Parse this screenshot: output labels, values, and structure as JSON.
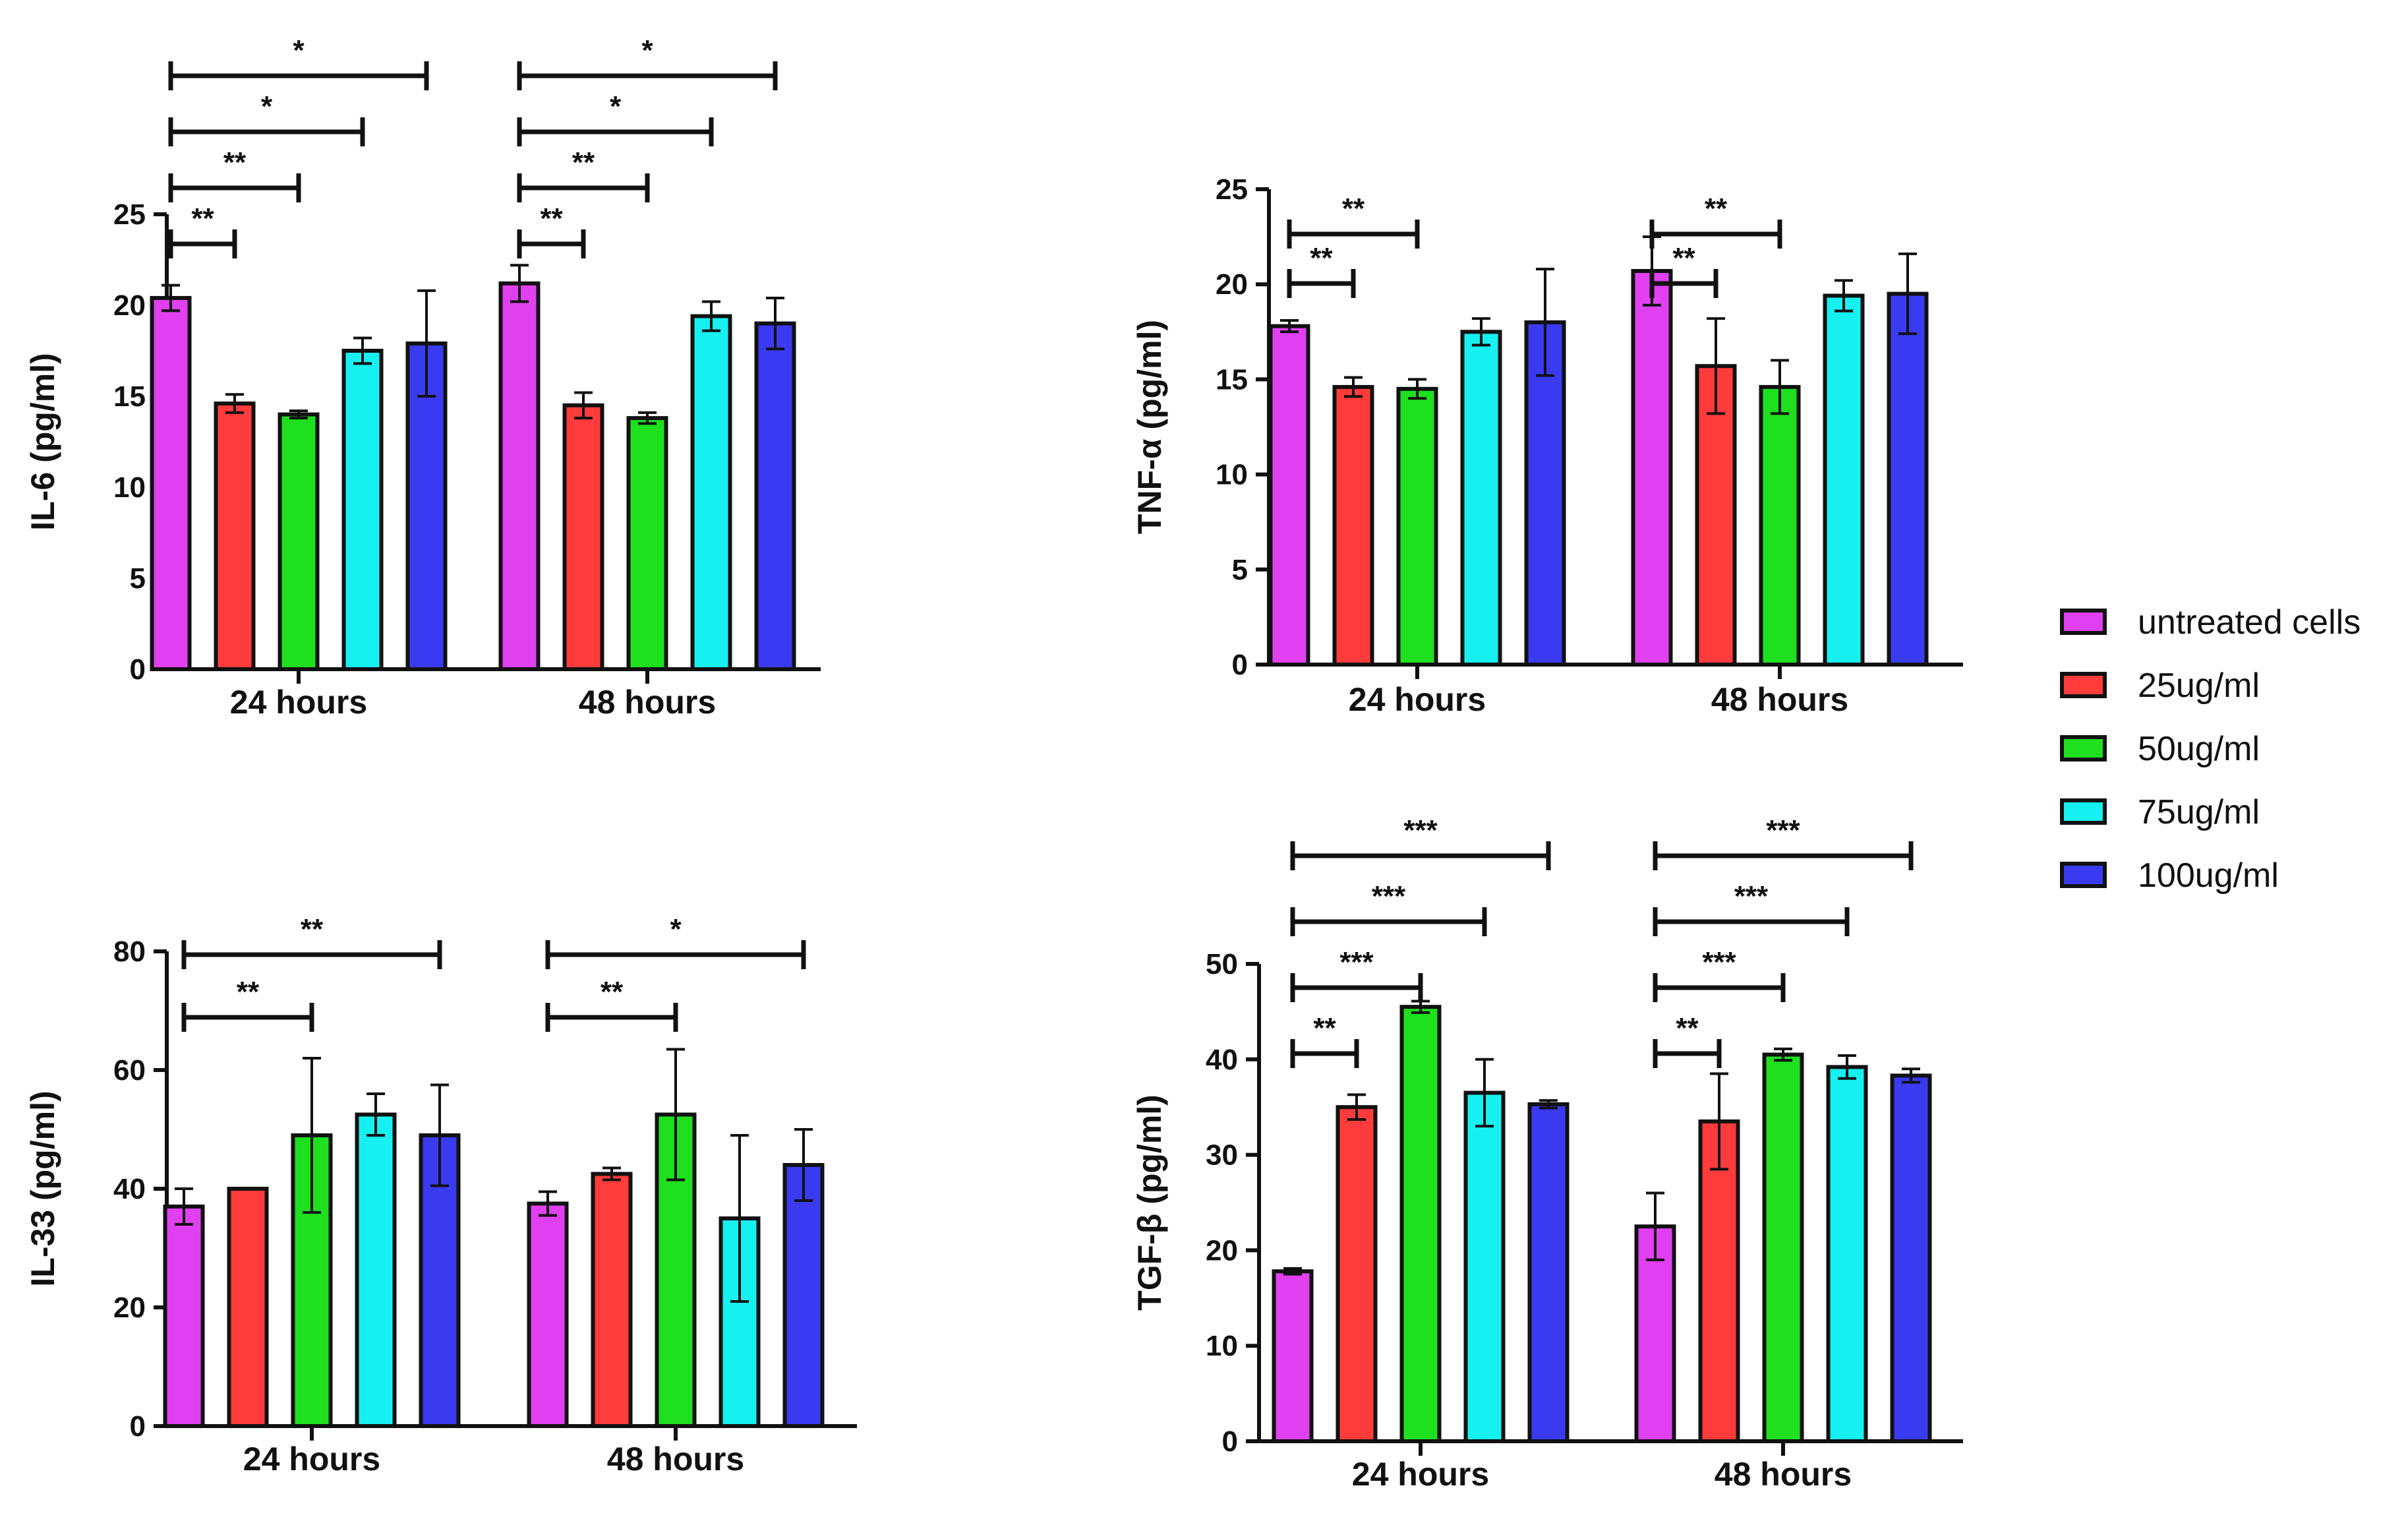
{
  "chart_data": [
    {
      "id": "il6",
      "type": "bar",
      "ylabel": "IL-6 (pg/ml)",
      "ylim": [
        0,
        25
      ],
      "yticks": [
        0,
        5,
        10,
        15,
        20,
        25
      ],
      "categories": [
        "24 hours",
        "48 hours"
      ],
      "series": [
        {
          "name": "untreated cells",
          "values": [
            20.4,
            21.2
          ],
          "errors": [
            0.7,
            1.0
          ]
        },
        {
          "name": "25ug/ml",
          "values": [
            14.6,
            14.5
          ],
          "errors": [
            0.5,
            0.7
          ]
        },
        {
          "name": "50ug/ml",
          "values": [
            14.0,
            13.8
          ],
          "errors": [
            0.2,
            0.3
          ]
        },
        {
          "name": "75ug/ml",
          "values": [
            17.5,
            19.4
          ],
          "errors": [
            0.7,
            0.8
          ]
        },
        {
          "name": "100ug/ml",
          "values": [
            17.9,
            19.0
          ],
          "errors": [
            2.9,
            1.4
          ]
        }
      ],
      "significance": [
        {
          "group": 0,
          "from": 0,
          "to": 1,
          "label": "**"
        },
        {
          "group": 0,
          "from": 0,
          "to": 2,
          "label": "**"
        },
        {
          "group": 0,
          "from": 0,
          "to": 3,
          "label": "*"
        },
        {
          "group": 0,
          "from": 0,
          "to": 4,
          "label": "*"
        },
        {
          "group": 1,
          "from": 0,
          "to": 1,
          "label": "**"
        },
        {
          "group": 1,
          "from": 0,
          "to": 2,
          "label": "**"
        },
        {
          "group": 1,
          "from": 0,
          "to": 3,
          "label": "*"
        },
        {
          "group": 1,
          "from": 0,
          "to": 4,
          "label": "*"
        }
      ]
    },
    {
      "id": "tnfa",
      "type": "bar",
      "ylabel": "TNF-α (pg/ml)",
      "ylim": [
        0,
        25
      ],
      "yticks": [
        0,
        5,
        10,
        15,
        20,
        25
      ],
      "categories": [
        "24 hours",
        "48 hours"
      ],
      "series": [
        {
          "name": "untreated cells",
          "values": [
            17.8,
            20.7
          ],
          "errors": [
            0.3,
            1.8
          ]
        },
        {
          "name": "25ug/ml",
          "values": [
            14.6,
            15.7
          ],
          "errors": [
            0.5,
            2.5
          ]
        },
        {
          "name": "50ug/ml",
          "values": [
            14.5,
            14.6
          ],
          "errors": [
            0.5,
            1.4
          ]
        },
        {
          "name": "75ug/ml",
          "values": [
            17.5,
            19.4
          ],
          "errors": [
            0.7,
            0.8
          ]
        },
        {
          "name": "100ug/ml",
          "values": [
            18.0,
            19.5
          ],
          "errors": [
            2.8,
            2.1
          ]
        }
      ],
      "significance": [
        {
          "group": 0,
          "from": 0,
          "to": 1,
          "label": "**"
        },
        {
          "group": 0,
          "from": 0,
          "to": 2,
          "label": "**"
        },
        {
          "group": 1,
          "from": 0,
          "to": 1,
          "label": "**"
        },
        {
          "group": 1,
          "from": 0,
          "to": 2,
          "label": "**"
        }
      ]
    },
    {
      "id": "il33",
      "type": "bar",
      "ylabel": "IL-33 (pg/ml)",
      "ylim": [
        0,
        80
      ],
      "yticks": [
        0,
        20,
        40,
        60,
        80
      ],
      "categories": [
        "24 hours",
        "48 hours"
      ],
      "series": [
        {
          "name": "untreated cells",
          "values": [
            37,
            37.5
          ],
          "errors": [
            3,
            2
          ]
        },
        {
          "name": "25ug/ml",
          "values": [
            40,
            42.5
          ],
          "errors": [
            0,
            1
          ]
        },
        {
          "name": "50ug/ml",
          "values": [
            49,
            52.5
          ],
          "errors": [
            13,
            11
          ]
        },
        {
          "name": "75ug/ml",
          "values": [
            52.5,
            35
          ],
          "errors": [
            3.5,
            14
          ]
        },
        {
          "name": "100ug/ml",
          "values": [
            49,
            44
          ],
          "errors": [
            8.5,
            6
          ]
        }
      ],
      "significance": [
        {
          "group": 0,
          "from": 0,
          "to": 2,
          "label": "**"
        },
        {
          "group": 0,
          "from": 0,
          "to": 4,
          "label": "**"
        },
        {
          "group": 1,
          "from": 0,
          "to": 2,
          "label": "**"
        },
        {
          "group": 1,
          "from": 0,
          "to": 4,
          "label": "*"
        }
      ]
    },
    {
      "id": "tgfb",
      "type": "bar",
      "ylabel": "TGF-β (pg/ml)",
      "ylim": [
        0,
        50
      ],
      "yticks": [
        0,
        10,
        20,
        30,
        40,
        50
      ],
      "categories": [
        "24 hours",
        "48 hours"
      ],
      "series": [
        {
          "name": "untreated cells",
          "values": [
            17.8,
            22.5
          ],
          "errors": [
            0.3,
            3.5
          ]
        },
        {
          "name": "25ug/ml",
          "values": [
            35,
            33.5
          ],
          "errors": [
            1.3,
            5
          ]
        },
        {
          "name": "50ug/ml",
          "values": [
            45.5,
            40.5
          ],
          "errors": [
            0.6,
            0.6
          ]
        },
        {
          "name": "75ug/ml",
          "values": [
            36.5,
            39.2
          ],
          "errors": [
            3.5,
            1.2
          ]
        },
        {
          "name": "100ug/ml",
          "values": [
            35.3,
            38.3
          ],
          "errors": [
            0.4,
            0.7
          ]
        }
      ],
      "significance": [
        {
          "group": 0,
          "from": 0,
          "to": 1,
          "label": "**"
        },
        {
          "group": 0,
          "from": 0,
          "to": 2,
          "label": "***"
        },
        {
          "group": 0,
          "from": 0,
          "to": 3,
          "label": "***"
        },
        {
          "group": 0,
          "from": 0,
          "to": 4,
          "label": "***"
        },
        {
          "group": 1,
          "from": 0,
          "to": 1,
          "label": "**"
        },
        {
          "group": 1,
          "from": 0,
          "to": 2,
          "label": "***"
        },
        {
          "group": 1,
          "from": 0,
          "to": 3,
          "label": "***"
        },
        {
          "group": 1,
          "from": 0,
          "to": 4,
          "label": "***"
        }
      ]
    }
  ],
  "legend": [
    {
      "label": "untreated cells",
      "color": "#e040f0"
    },
    {
      "label": "25ug/ml",
      "color": "#ff3b3b"
    },
    {
      "label": "50ug/ml",
      "color": "#1ee01e"
    },
    {
      "label": "75ug/ml",
      "color": "#17f0f0"
    },
    {
      "label": "100ug/ml",
      "color": "#3a3af0"
    }
  ]
}
